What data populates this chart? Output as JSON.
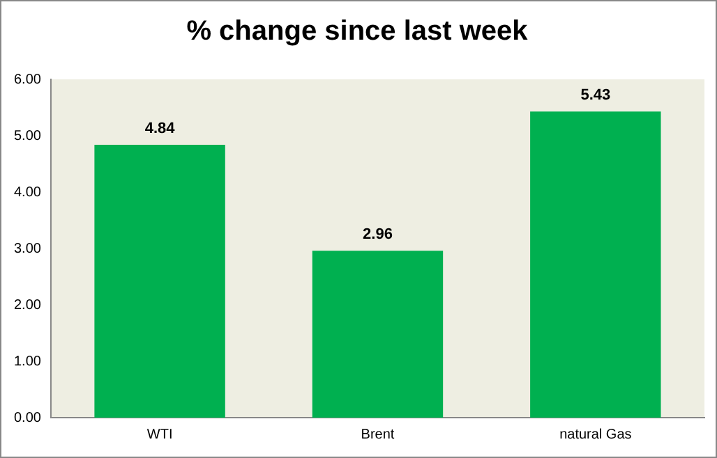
{
  "chart_data": {
    "type": "bar",
    "title": "% change since last week",
    "categories": [
      "WTI",
      "Brent",
      "natural Gas"
    ],
    "values": [
      4.84,
      2.96,
      5.43
    ],
    "color": "#00b050",
    "ylim": [
      0,
      6
    ],
    "yticks": [
      {
        "value": 0,
        "label": "0.00"
      },
      {
        "value": 1,
        "label": "1.00"
      },
      {
        "value": 2,
        "label": "2.00"
      },
      {
        "value": 3,
        "label": "3.00"
      },
      {
        "value": 4,
        "label": "4.00"
      },
      {
        "value": 5,
        "label": "5.00"
      },
      {
        "value": 6,
        "label": "6.00"
      }
    ],
    "grid": false,
    "legend": false,
    "data_labels": true
  }
}
